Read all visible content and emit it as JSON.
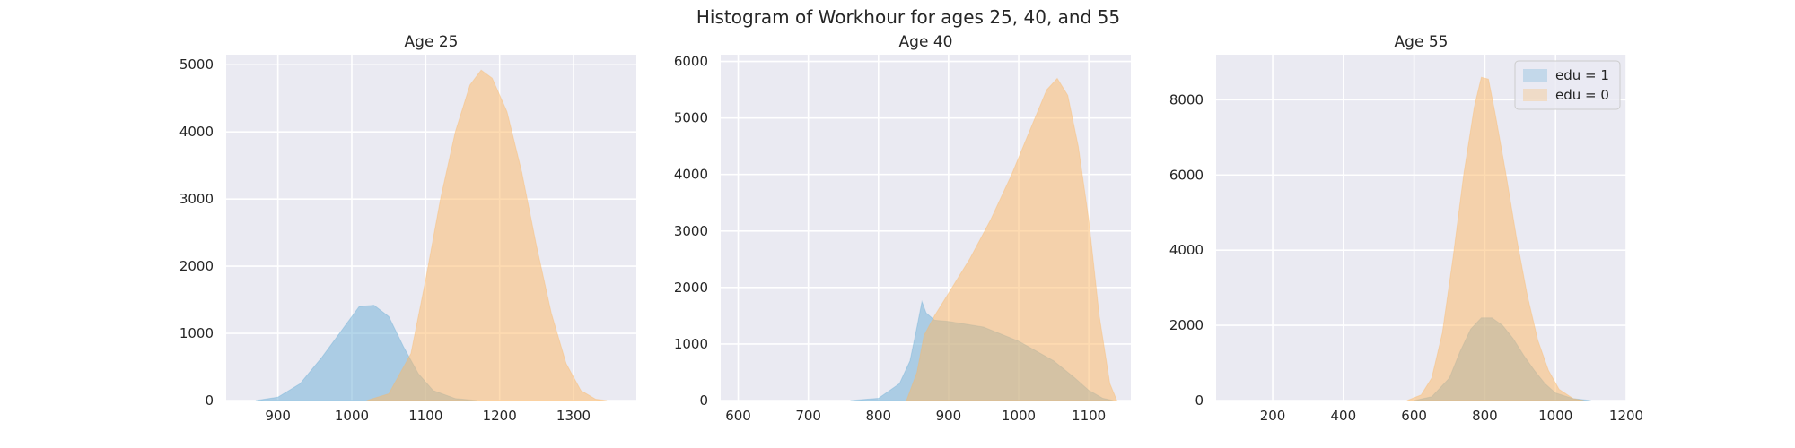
{
  "figure": {
    "title": "Histogram of Workhour for ages 25, 40, and 55",
    "background": "#ffffff",
    "plot_background": "#eaeaf2",
    "grid_color": "#ffffff"
  },
  "chart_data": [
    {
      "type": "histogram",
      "title": "Age 25",
      "xlim": [
        830,
        1385
      ],
      "ylim": [
        0,
        5150
      ],
      "xticks": [
        900,
        1000,
        1100,
        1200,
        1300
      ],
      "yticks": [
        0,
        1000,
        2000,
        3000,
        4000,
        5000
      ],
      "grid": true,
      "legend": null,
      "series": [
        {
          "name": "edu = 1",
          "color": "#6baed6",
          "opacity": 0.5,
          "x": [
            870,
            900,
            930,
            960,
            990,
            1010,
            1030,
            1050,
            1070,
            1090,
            1110,
            1140,
            1170
          ],
          "y": [
            0,
            50,
            250,
            650,
            1100,
            1400,
            1420,
            1250,
            800,
            400,
            150,
            30,
            0
          ]
        },
        {
          "name": "edu = 0",
          "color": "#fdb863",
          "opacity": 0.5,
          "x": [
            1020,
            1050,
            1080,
            1100,
            1120,
            1140,
            1160,
            1175,
            1190,
            1210,
            1230,
            1250,
            1270,
            1290,
            1310,
            1330,
            1345
          ],
          "y": [
            0,
            100,
            700,
            1800,
            3000,
            4000,
            4700,
            4920,
            4800,
            4300,
            3400,
            2300,
            1300,
            550,
            150,
            20,
            0
          ]
        }
      ]
    },
    {
      "type": "histogram",
      "title": "Age 40",
      "xlim": [
        575,
        1160
      ],
      "ylim": [
        0,
        6120
      ],
      "xticks": [
        600,
        700,
        800,
        900,
        1000,
        1100
      ],
      "yticks": [
        0,
        1000,
        2000,
        3000,
        4000,
        5000,
        6000
      ],
      "grid": true,
      "legend": null,
      "series": [
        {
          "name": "edu = 1",
          "color": "#6baed6",
          "opacity": 0.5,
          "x": [
            760,
            800,
            830,
            845,
            855,
            862,
            868,
            880,
            900,
            950,
            1000,
            1050,
            1080,
            1100,
            1120,
            1135
          ],
          "y": [
            0,
            40,
            300,
            700,
            1300,
            1750,
            1550,
            1420,
            1400,
            1300,
            1050,
            700,
            400,
            180,
            40,
            0
          ]
        },
        {
          "name": "edu = 0",
          "color": "#fdb863",
          "opacity": 0.5,
          "x": [
            840,
            855,
            865,
            880,
            900,
            930,
            960,
            990,
            1020,
            1040,
            1055,
            1070,
            1085,
            1100,
            1115,
            1130,
            1140
          ],
          "y": [
            0,
            500,
            1150,
            1500,
            1900,
            2500,
            3200,
            4000,
            4900,
            5500,
            5700,
            5400,
            4500,
            3200,
            1500,
            300,
            0
          ]
        }
      ]
    },
    {
      "type": "histogram",
      "title": "Age 55",
      "xlim": [
        40,
        1200
      ],
      "ylim": [
        0,
        9200
      ],
      "xticks": [
        200,
        400,
        600,
        800,
        1000,
        1200
      ],
      "yticks": [
        0,
        2000,
        4000,
        6000,
        8000
      ],
      "grid": true,
      "legend": "upper right",
      "series": [
        {
          "name": "edu = 1",
          "color": "#6baed6",
          "opacity": 0.5,
          "x": [
            600,
            650,
            700,
            730,
            760,
            790,
            820,
            850,
            880,
            910,
            940,
            970,
            1000,
            1050,
            1100
          ],
          "y": [
            0,
            100,
            600,
            1300,
            1900,
            2200,
            2200,
            2000,
            1650,
            1200,
            800,
            450,
            200,
            50,
            0
          ]
        },
        {
          "name": "edu = 0",
          "color": "#fdb863",
          "opacity": 0.5,
          "x": [
            580,
            620,
            650,
            680,
            710,
            740,
            770,
            790,
            810,
            830,
            860,
            890,
            920,
            950,
            980,
            1010,
            1050,
            1080
          ],
          "y": [
            0,
            150,
            600,
            1800,
            3800,
            6000,
            7800,
            8600,
            8550,
            7600,
            6000,
            4300,
            2800,
            1600,
            800,
            300,
            50,
            0
          ]
        }
      ]
    }
  ]
}
